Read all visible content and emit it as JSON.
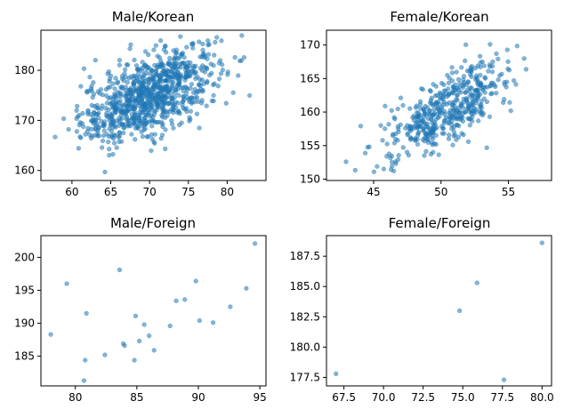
{
  "chart_data": [
    {
      "type": "scatter",
      "title": "Male/Korean",
      "xlabel": "",
      "ylabel": "",
      "xlim": [
        56,
        85
      ],
      "ylim": [
        158,
        188
      ],
      "xticks": [
        60,
        65,
        70,
        75,
        80
      ],
      "yticks": [
        160,
        170,
        180
      ],
      "color": "#1f77b4",
      "grid": false,
      "cluster": {
        "count": 900,
        "x_mean": 70.0,
        "x_sd": 4.4,
        "y_mean": 175.0,
        "y_sd": 4.8,
        "corr": 0.58,
        "x_range": [
          57.5,
          83.0
        ],
        "y_range": [
          159.0,
          187.0
        ]
      }
    },
    {
      "type": "scatter",
      "title": "Female/Korean",
      "xlabel": "",
      "ylabel": "",
      "xlim": [
        41.5,
        58.2
      ],
      "ylim": [
        149.8,
        172.2
      ],
      "xticks": [
        45,
        50,
        55
      ],
      "yticks": [
        150,
        155,
        160,
        165,
        170
      ],
      "color": "#1f77b4",
      "grid": false,
      "cluster": {
        "count": 480,
        "x_mean": 50.4,
        "x_sd": 2.4,
        "y_mean": 160.3,
        "y_sd": 3.6,
        "corr": 0.72,
        "x_range": [
          42.3,
          57.3
        ],
        "y_range": [
          150.5,
          171.0
        ]
      }
    },
    {
      "type": "scatter",
      "title": "Male/Foreign",
      "xlabel": "",
      "ylabel": "",
      "xlim": [
        77.2,
        95.5
      ],
      "ylim": [
        180.5,
        203.3
      ],
      "xticks": [
        80,
        85,
        90,
        95
      ],
      "yticks": [
        185,
        190,
        195,
        200
      ],
      "color": "#1f77b4",
      "grid": false,
      "points": [
        [
          78.0,
          188.3
        ],
        [
          79.3,
          196.0
        ],
        [
          80.7,
          181.3
        ],
        [
          80.8,
          184.4
        ],
        [
          80.9,
          191.5
        ],
        [
          82.4,
          185.2
        ],
        [
          83.6,
          198.1
        ],
        [
          83.9,
          186.9
        ],
        [
          84.0,
          186.6
        ],
        [
          84.8,
          184.4
        ],
        [
          84.9,
          191.1
        ],
        [
          85.2,
          187.3
        ],
        [
          85.6,
          189.8
        ],
        [
          86.0,
          188.1
        ],
        [
          86.4,
          185.9
        ],
        [
          87.7,
          189.6
        ],
        [
          88.2,
          193.4
        ],
        [
          88.9,
          193.6
        ],
        [
          89.8,
          196.4
        ],
        [
          90.1,
          190.4
        ],
        [
          91.2,
          190.1
        ],
        [
          92.6,
          192.5
        ],
        [
          93.9,
          195.3
        ],
        [
          94.6,
          202.1
        ]
      ]
    },
    {
      "type": "scatter",
      "title": "Female/Foreign",
      "xlabel": "",
      "ylabel": "",
      "xlim": [
        66.4,
        80.6
      ],
      "ylim": [
        176.8,
        189.2
      ],
      "xticks": [
        67.5,
        70.0,
        72.5,
        75.0,
        77.5,
        80.0
      ],
      "xtick_labels": [
        "67.5",
        "70.0",
        "72.5",
        "75.0",
        "77.5",
        "80.0"
      ],
      "yticks": [
        177.5,
        180.0,
        182.5,
        185.0,
        187.5
      ],
      "ytick_labels": [
        "177.5",
        "180.0",
        "182.5",
        "185.0",
        "187.5"
      ],
      "color": "#1f77b4",
      "grid": false,
      "points": [
        [
          67.0,
          177.8
        ],
        [
          74.8,
          183.0
        ],
        [
          75.9,
          185.3
        ],
        [
          77.6,
          177.3
        ],
        [
          80.0,
          188.6
        ]
      ]
    }
  ]
}
